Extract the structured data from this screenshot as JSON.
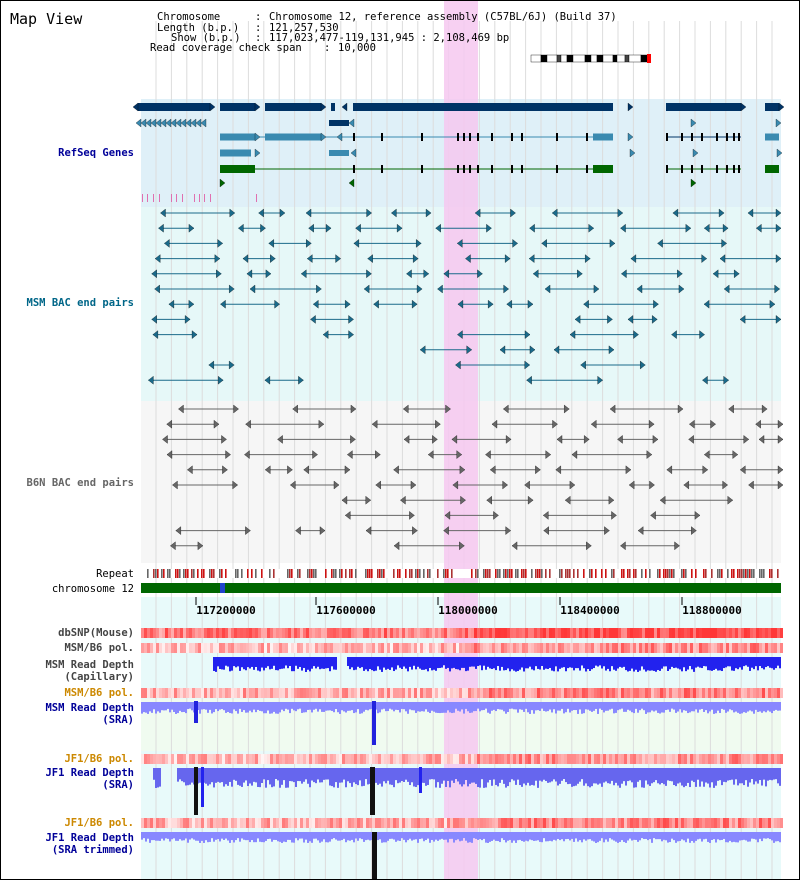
{
  "header": {
    "title": "Map View",
    "chromosome_label": "Chromosome",
    "chromosome_value": "Chromosome 12, reference assembly (C57BL/6J) (Build 37)",
    "length_label": "Length (b.p.)",
    "length_value": "121,257,530",
    "show_label": "Show (b.p.)",
    "show_value": "117,023,477-119,131,945 : 2,108,469 bp",
    "coverage_label": "Read coverage check span",
    "coverage_value": "10,000"
  },
  "tracks": {
    "refseq": "RefSeq Genes",
    "msm_bac": "MSM BAC end pairs",
    "b6n_bac": "B6N BAC end pairs",
    "repeat": "Repeat",
    "chromosome": "chromosome 12",
    "dbsnp": "dbSNP(Mouse)",
    "msm_b6_pol_1": "MSM/B6 pol.",
    "msm_read_depth_cap_1": "MSM Read Depth",
    "msm_read_depth_cap_2": "(Capillary)",
    "msm_b6_pol_2": "MSM/B6 pol.",
    "msm_read_depth_sra_1": "MSM Read Depth",
    "msm_read_depth_sra_2": "(SRA)",
    "jf1_b6_pol_1": "JF1/B6 pol.",
    "jf1_read_depth_1": "JF1 Read Depth",
    "jf1_read_depth_2": "(SRA)",
    "jf1_b6_pol_2": "JF1/B6 pol.",
    "jf1_read_depth_trim_1": "JF1 Read Depth",
    "jf1_read_depth_trim_2": "(SRA trimmed)"
  },
  "axis": {
    "ticks": [
      "117200000",
      "117600000",
      "118000000",
      "118400000",
      "118800000"
    ]
  },
  "colors": {
    "refseq_dark": "#003366",
    "refseq_mid": "#3a8ab0",
    "refseq_green": "#006600",
    "msm_bac": "#1a6a8a",
    "b6n_bac": "#666666",
    "chromosome_bar": "#006600",
    "highlight": "#f6c8f0",
    "track_label_blue": "#000099",
    "track_label_orange": "#cc8800",
    "track_label_teal": "#006688"
  }
}
